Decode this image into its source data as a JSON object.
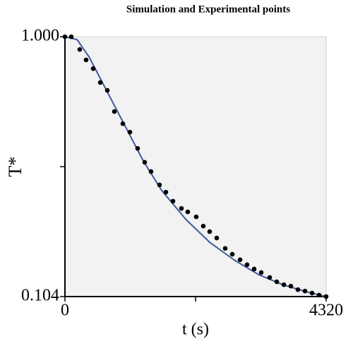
{
  "chart_data": {
    "type": "scatter-line",
    "title": "Simulation and Experimental points",
    "xlabel": "t (s)",
    "ylabel": "T*",
    "xlim": [
      0,
      4320
    ],
    "ylim": [
      0.104,
      1
    ],
    "xticks": [
      0,
      4320
    ],
    "yticks": [
      0.104,
      {
        "value": 1,
        "label": "1.000"
      }
    ],
    "xminorticks": [
      2160
    ],
    "yminorticks": [
      0.552
    ],
    "series": [
      {
        "kind": "line",
        "color": "#3d5a9e",
        "x": [
          0,
          200,
          400,
          700,
          1000,
          1300,
          1600,
          2000,
          2400,
          2800,
          3200,
          3600,
          4000,
          4320
        ],
        "values": [
          1.0,
          0.99,
          0.93,
          0.81,
          0.69,
          0.57,
          0.47,
          0.37,
          0.29,
          0.23,
          0.18,
          0.145,
          0.12,
          0.104
        ]
      },
      {
        "kind": "scatter",
        "color": "#000000",
        "x": [
          0,
          105,
          245,
          350,
          467,
          584,
          701,
          817,
          957,
          1074,
          1202,
          1319,
          1424,
          1564,
          1669,
          1786,
          1926,
          2031,
          2171,
          2288,
          2393,
          2510,
          2650,
          2767,
          2896,
          3012,
          3129,
          3246,
          3386,
          3503,
          3620,
          3736,
          3853,
          3970,
          4087,
          4203,
          4320
        ],
        "values": [
          1.0,
          1.0,
          0.956,
          0.92,
          0.89,
          0.842,
          0.815,
          0.742,
          0.7,
          0.671,
          0.615,
          0.567,
          0.535,
          0.489,
          0.464,
          0.433,
          0.408,
          0.396,
          0.379,
          0.347,
          0.328,
          0.306,
          0.27,
          0.25,
          0.231,
          0.214,
          0.199,
          0.187,
          0.17,
          0.155,
          0.145,
          0.14,
          0.128,
          0.123,
          0.116,
          0.109,
          0.104
        ]
      }
    ]
  }
}
